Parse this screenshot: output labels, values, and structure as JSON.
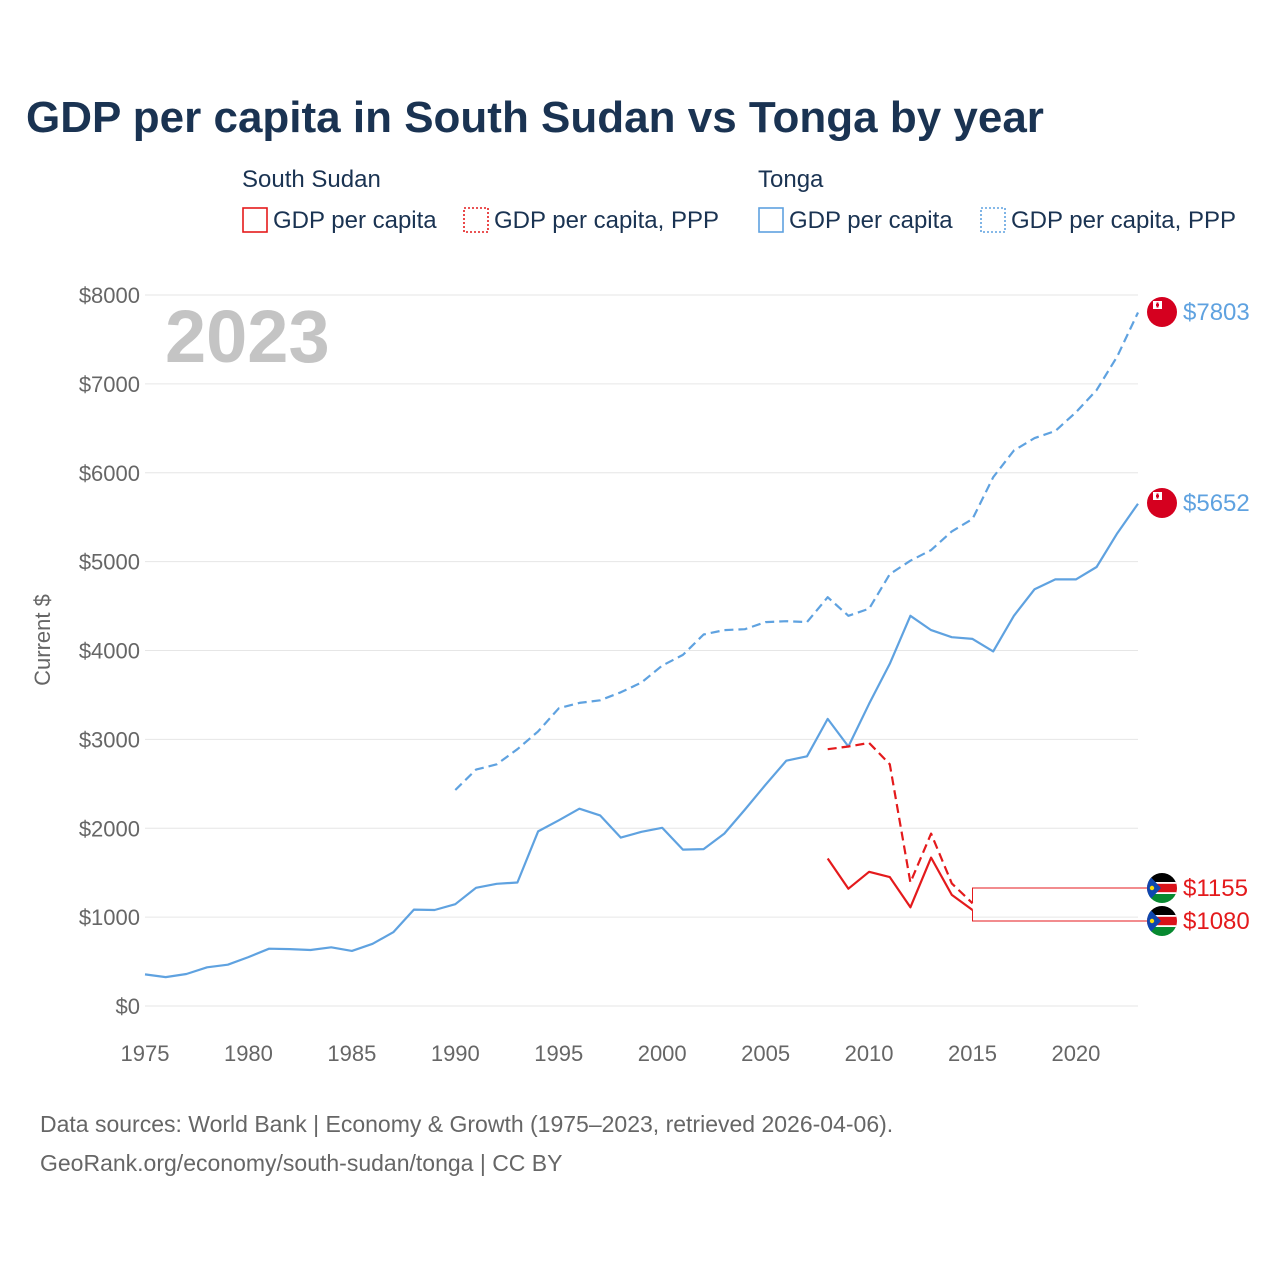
{
  "title": "GDP per capita in South Sudan vs Tonga by year",
  "year_watermark": "2023",
  "legend": {
    "groups": [
      {
        "name": "South Sudan",
        "color": "#e41a1c",
        "items": [
          {
            "label": "GDP per capita",
            "style": "solid"
          },
          {
            "label": "GDP per capita, PPP",
            "style": "dotted"
          }
        ]
      },
      {
        "name": "Tonga",
        "color": "#5fa2e0",
        "items": [
          {
            "label": "GDP per capita",
            "style": "solid"
          },
          {
            "label": "GDP per capita, PPP",
            "style": "dotted"
          }
        ]
      }
    ]
  },
  "source": {
    "line1": "Data sources: World Bank | Economy & Growth (1975–2023, retrieved 2026-04-06).",
    "line2": "GeoRank.org/economy/south-sudan/tonga | CC BY"
  },
  "chart_data": {
    "type": "line",
    "title": "GDP per capita in South Sudan vs Tonga by year",
    "xlabel": "",
    "ylabel": "Current $",
    "xlim": [
      1975,
      2023
    ],
    "ylim": [
      0,
      8000
    ],
    "x_ticks": [
      1975,
      1980,
      1985,
      1990,
      1995,
      2000,
      2005,
      2010,
      2015,
      2020
    ],
    "y_ticks": [
      0,
      1000,
      2000,
      3000,
      4000,
      5000,
      6000,
      7000,
      8000
    ],
    "y_tick_labels": [
      "$0",
      "$1000",
      "$2000",
      "$3000",
      "$4000",
      "$5000",
      "$6000",
      "$7000",
      "$8000"
    ],
    "grid": true,
    "series": [
      {
        "id": "tonga-gdp-ppp",
        "name": "Tonga GDP per capita, PPP",
        "color": "#5fa2e0",
        "dash": true,
        "x": [
          1990,
          1991,
          1992,
          1993,
          1994,
          1995,
          1996,
          1997,
          1998,
          1999,
          2000,
          2001,
          2002,
          2003,
          2004,
          2005,
          2006,
          2007,
          2008,
          2009,
          2010,
          2011,
          2012,
          2013,
          2014,
          2015,
          2016,
          2017,
          2018,
          2019,
          2020,
          2021,
          2022,
          2023
        ],
        "values": [
          2430,
          2660,
          2720,
          2890,
          3090,
          3350,
          3410,
          3440,
          3530,
          3640,
          3830,
          3950,
          4180,
          4230,
          4240,
          4320,
          4330,
          4320,
          4600,
          4390,
          4470,
          4860,
          5010,
          5130,
          5340,
          5480,
          5950,
          6250,
          6390,
          6470,
          6680,
          6930,
          7310,
          7803
        ],
        "end_label": "$7803"
      },
      {
        "id": "tonga-gdp",
        "name": "Tonga GDP per capita",
        "color": "#5fa2e0",
        "dash": false,
        "x": [
          1975,
          1976,
          1977,
          1978,
          1979,
          1980,
          1981,
          1982,
          1983,
          1984,
          1985,
          1986,
          1987,
          1988,
          1989,
          1990,
          1991,
          1992,
          1993,
          1994,
          1995,
          1996,
          1997,
          1998,
          1999,
          2000,
          2001,
          2002,
          2003,
          2004,
          2005,
          2006,
          2007,
          2008,
          2009,
          2010,
          2011,
          2012,
          2013,
          2014,
          2015,
          2016,
          2017,
          2018,
          2019,
          2020,
          2021,
          2022,
          2023
        ],
        "values": [
          355,
          325,
          360,
          435,
          465,
          550,
          645,
          640,
          630,
          660,
          620,
          700,
          830,
          1085,
          1080,
          1145,
          1330,
          1375,
          1390,
          1965,
          2090,
          2220,
          2145,
          1895,
          1960,
          2005,
          1760,
          1765,
          1940,
          2210,
          2490,
          2760,
          2810,
          3230,
          2920,
          3400,
          3850,
          4390,
          4230,
          4150,
          4130,
          3990,
          4390,
          4690,
          4800,
          4800,
          4940,
          5320,
          5652
        ],
        "end_label": "$5652"
      },
      {
        "id": "ssudan-gdp-ppp",
        "name": "South Sudan GDP per capita, PPP",
        "color": "#e41a1c",
        "dash": true,
        "x": [
          2008,
          2009,
          2010,
          2011,
          2012,
          2013,
          2014,
          2015
        ],
        "values": [
          2890,
          2920,
          2960,
          2720,
          1390,
          1940,
          1380,
          1155
        ],
        "end_label": "$1155"
      },
      {
        "id": "ssudan-gdp",
        "name": "South Sudan GDP per capita",
        "color": "#e41a1c",
        "dash": false,
        "x": [
          2008,
          2009,
          2010,
          2011,
          2012,
          2013,
          2014,
          2015
        ],
        "values": [
          1660,
          1320,
          1510,
          1450,
          1110,
          1670,
          1250,
          1080
        ],
        "end_label": "$1080"
      }
    ]
  },
  "flags": {
    "tonga": {
      "red": "#d5001f",
      "white": "#ffffff"
    },
    "south_sudan": {
      "black": "#000000",
      "red": "#da121a",
      "green": "#078930",
      "blue": "#0f47af",
      "yellow": "#fcdd09",
      "white": "#ffffff"
    }
  }
}
